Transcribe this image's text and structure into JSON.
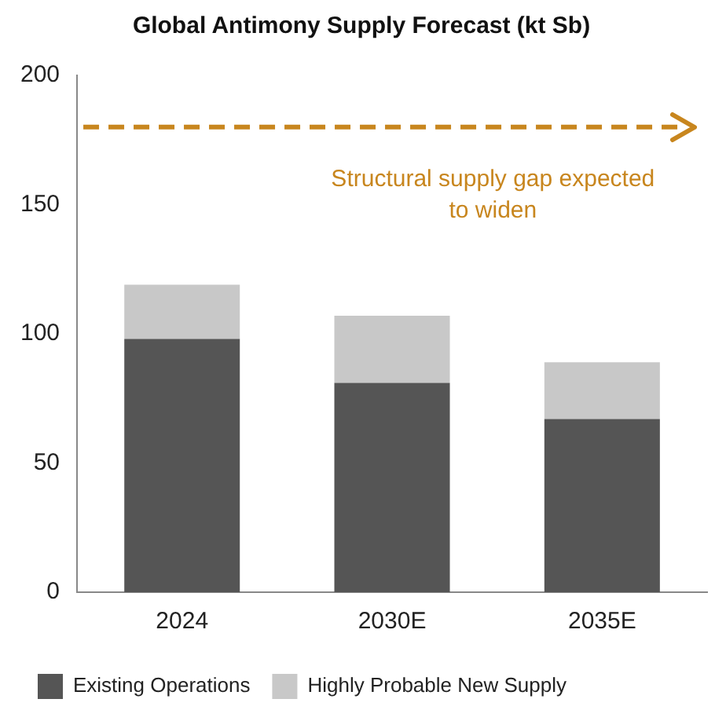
{
  "chart_data": {
    "type": "bar",
    "title": "Global Antimony Supply Forecast (kt Sb)",
    "categories": [
      "2024",
      "2030E",
      "2035E"
    ],
    "stacked": true,
    "series": [
      {
        "name": "Existing Operations",
        "color": "#555555",
        "values": [
          98,
          81,
          67
        ]
      },
      {
        "name": "Highly Probable New Supply",
        "color": "#c8c8c8",
        "values": [
          21,
          26,
          22
        ]
      }
    ],
    "ylim": [
      0,
      200
    ],
    "yticks": [
      0,
      50,
      100,
      150,
      200
    ],
    "grid": false,
    "legend": "bottom",
    "ref_lines": [
      {
        "axis": "y",
        "value": 180,
        "label": "Structural supply gap expected to widen",
        "color": "#c8861e",
        "line_style": "dashed"
      }
    ]
  }
}
